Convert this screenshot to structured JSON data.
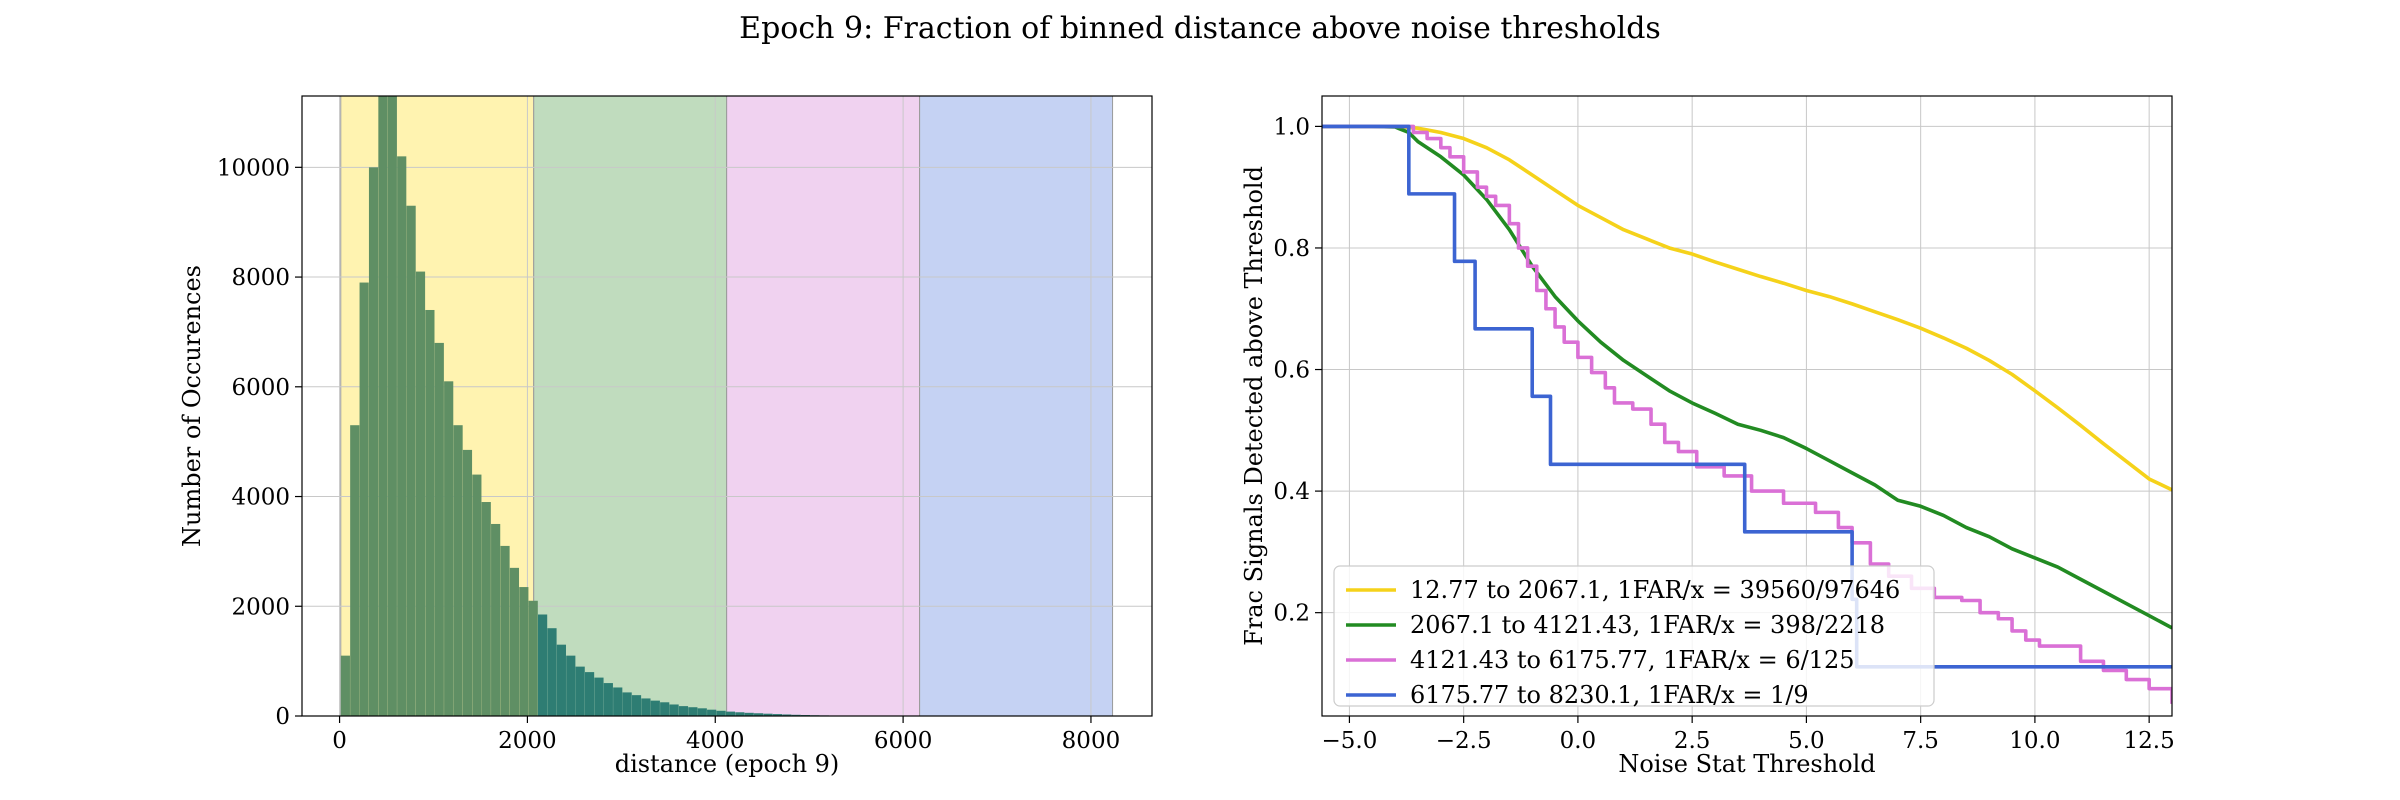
{
  "suptitle": "Epoch 9: Fraction of binned distance above noise thresholds",
  "colors": {
    "hist_bar": "#5f8f64",
    "hist_overflow": "#2e7d73",
    "band_yellow": "#fff3b0",
    "band_green": "#c0dcbe",
    "band_pink": "#f0d2f0",
    "band_blue": "#c5d2f3",
    "series_yellow": "#f5d21a",
    "series_green": "#228b22",
    "series_pink": "#da70d6",
    "series_blue": "#3c64d2",
    "grid": "#c8c8c8"
  },
  "chart_data": [
    {
      "type": "bar",
      "subtype": "histogram",
      "title": "",
      "xlabel": "distance (epoch 9)",
      "ylabel": "Number of Occurences",
      "xlim": [
        -400,
        8650
      ],
      "ylim": [
        0,
        11300
      ],
      "xticks": [
        "0",
        "2000",
        "4000",
        "6000",
        "8000"
      ],
      "yticks": [
        "0",
        "2000",
        "4000",
        "6000",
        "8000",
        "10000"
      ],
      "grid": true,
      "bin_start": 12.77,
      "bin_width": 100,
      "values": [
        1100,
        5300,
        7900,
        10000,
        11300,
        11300,
        10200,
        9300,
        8100,
        7400,
        6800,
        6100,
        5300,
        4850,
        4400,
        3900,
        3500,
        3100,
        2700,
        2350,
        2100,
        1850,
        1600,
        1300,
        1100,
        900,
        800,
        700,
        600,
        520,
        430,
        380,
        320,
        280,
        250,
        210,
        180,
        160,
        140,
        115,
        95,
        80,
        68,
        58,
        50,
        42,
        35,
        28,
        22,
        18,
        14,
        11,
        8,
        6,
        4,
        3,
        2,
        2,
        1,
        1
      ],
      "bands": [
        {
          "from": 12.77,
          "to": 2067.1,
          "color": "#fff3b0"
        },
        {
          "from": 2067.1,
          "to": 4121.43,
          "color": "#c0dcbe"
        },
        {
          "from": 4121.43,
          "to": 6175.77,
          "color": "#f0d2f0"
        },
        {
          "from": 6175.77,
          "to": 8230.1,
          "color": "#c5d2f3"
        }
      ]
    },
    {
      "type": "line",
      "title": "",
      "xlabel": "Noise Stat Threshold",
      "ylabel": "Frac Signals Detected above Threshold",
      "xlim": [
        -5.6,
        13.0
      ],
      "ylim": [
        0.03,
        1.05
      ],
      "xticks": [
        "−5.0",
        "−2.5",
        "0.0",
        "2.5",
        "5.0",
        "7.5",
        "10.0",
        "12.5"
      ],
      "yticks": [
        "0.2",
        "0.4",
        "0.6",
        "0.8",
        "1.0"
      ],
      "grid": true,
      "legend_position": "lower-left",
      "series": [
        {
          "name": "12.77 to 2067.1, 1FAR/x = 39560/97646",
          "color": "#f5d21a",
          "step": false,
          "points": [
            [
              -5.6,
              1.0
            ],
            [
              -4.5,
              1.0
            ],
            [
              -4.0,
              1.0
            ],
            [
              -3.5,
              0.997
            ],
            [
              -3.0,
              0.99
            ],
            [
              -2.5,
              0.98
            ],
            [
              -2.0,
              0.965
            ],
            [
              -1.5,
              0.945
            ],
            [
              -1.0,
              0.92
            ],
            [
              -0.5,
              0.895
            ],
            [
              0.0,
              0.87
            ],
            [
              0.5,
              0.85
            ],
            [
              1.0,
              0.83
            ],
            [
              1.5,
              0.815
            ],
            [
              2.0,
              0.8
            ],
            [
              2.5,
              0.79
            ],
            [
              3.0,
              0.777
            ],
            [
              3.5,
              0.765
            ],
            [
              4.0,
              0.753
            ],
            [
              4.5,
              0.742
            ],
            [
              5.0,
              0.73
            ],
            [
              5.5,
              0.72
            ],
            [
              6.0,
              0.708
            ],
            [
              6.5,
              0.695
            ],
            [
              7.0,
              0.682
            ],
            [
              7.5,
              0.668
            ],
            [
              8.0,
              0.652
            ],
            [
              8.5,
              0.635
            ],
            [
              9.0,
              0.615
            ],
            [
              9.5,
              0.592
            ],
            [
              10.0,
              0.565
            ],
            [
              10.5,
              0.537
            ],
            [
              11.0,
              0.508
            ],
            [
              11.5,
              0.478
            ],
            [
              12.0,
              0.449
            ],
            [
              12.5,
              0.42
            ],
            [
              13.0,
              0.402
            ]
          ]
        },
        {
          "name": "2067.1 to 4121.43, 1FAR/x = 398/2218",
          "color": "#228b22",
          "step": false,
          "points": [
            [
              -5.6,
              1.0
            ],
            [
              -4.5,
              1.0
            ],
            [
              -4.0,
              0.999
            ],
            [
              -3.7,
              0.99
            ],
            [
              -3.5,
              0.975
            ],
            [
              -3.0,
              0.95
            ],
            [
              -2.5,
              0.92
            ],
            [
              -2.0,
              0.88
            ],
            [
              -1.5,
              0.83
            ],
            [
              -1.0,
              0.77
            ],
            [
              -0.5,
              0.72
            ],
            [
              0.0,
              0.68
            ],
            [
              0.5,
              0.645
            ],
            [
              1.0,
              0.615
            ],
            [
              1.5,
              0.59
            ],
            [
              2.0,
              0.565
            ],
            [
              2.5,
              0.545
            ],
            [
              3.0,
              0.528
            ],
            [
              3.5,
              0.51
            ],
            [
              4.0,
              0.5
            ],
            [
              4.5,
              0.488
            ],
            [
              5.0,
              0.47
            ],
            [
              5.5,
              0.45
            ],
            [
              6.0,
              0.43
            ],
            [
              6.5,
              0.41
            ],
            [
              7.0,
              0.385
            ],
            [
              7.5,
              0.375
            ],
            [
              8.0,
              0.36
            ],
            [
              8.5,
              0.34
            ],
            [
              9.0,
              0.325
            ],
            [
              9.5,
              0.305
            ],
            [
              10.0,
              0.29
            ],
            [
              10.5,
              0.275
            ],
            [
              11.0,
              0.255
            ],
            [
              11.5,
              0.235
            ],
            [
              12.0,
              0.215
            ],
            [
              12.5,
              0.195
            ],
            [
              13.0,
              0.175
            ]
          ]
        },
        {
          "name": "4121.43 to 6175.77, 1FAR/x = 6/125",
          "color": "#da70d6",
          "step": true,
          "points": [
            [
              -5.6,
              1.0
            ],
            [
              -4.0,
              1.0
            ],
            [
              -3.6,
              0.99
            ],
            [
              -3.3,
              0.98
            ],
            [
              -3.0,
              0.965
            ],
            [
              -2.8,
              0.95
            ],
            [
              -2.5,
              0.925
            ],
            [
              -2.2,
              0.9
            ],
            [
              -2.0,
              0.885
            ],
            [
              -1.8,
              0.87
            ],
            [
              -1.5,
              0.84
            ],
            [
              -1.3,
              0.8
            ],
            [
              -1.1,
              0.77
            ],
            [
              -0.9,
              0.73
            ],
            [
              -0.7,
              0.7
            ],
            [
              -0.5,
              0.67
            ],
            [
              -0.3,
              0.645
            ],
            [
              0.0,
              0.62
            ],
            [
              0.3,
              0.595
            ],
            [
              0.6,
              0.57
            ],
            [
              0.8,
              0.545
            ],
            [
              1.2,
              0.535
            ],
            [
              1.6,
              0.51
            ],
            [
              1.9,
              0.48
            ],
            [
              2.2,
              0.465
            ],
            [
              2.6,
              0.44
            ],
            [
              3.2,
              0.425
            ],
            [
              3.8,
              0.4
            ],
            [
              4.5,
              0.38
            ],
            [
              5.2,
              0.365
            ],
            [
              5.7,
              0.34
            ],
            [
              6.0,
              0.315
            ],
            [
              6.4,
              0.28
            ],
            [
              6.8,
              0.26
            ],
            [
              7.3,
              0.24
            ],
            [
              7.8,
              0.225
            ],
            [
              8.4,
              0.22
            ],
            [
              8.8,
              0.2
            ],
            [
              9.2,
              0.19
            ],
            [
              9.5,
              0.17
            ],
            [
              9.8,
              0.155
            ],
            [
              10.1,
              0.145
            ],
            [
              10.5,
              0.145
            ],
            [
              11.0,
              0.12
            ],
            [
              11.5,
              0.105
            ],
            [
              12.0,
              0.09
            ],
            [
              12.5,
              0.075
            ],
            [
              13.0,
              0.05
            ]
          ]
        },
        {
          "name": "6175.77 to 8230.1, 1FAR/x = 1/9",
          "color": "#3c64d2",
          "step": true,
          "points": [
            [
              -5.6,
              1.0
            ],
            [
              -3.7,
              1.0
            ],
            [
              -3.7,
              0.889
            ],
            [
              -2.7,
              0.889
            ],
            [
              -2.7,
              0.778
            ],
            [
              -2.25,
              0.778
            ],
            [
              -2.25,
              0.667
            ],
            [
              -1.0,
              0.667
            ],
            [
              -1.0,
              0.556
            ],
            [
              -0.6,
              0.556
            ],
            [
              -0.6,
              0.444
            ],
            [
              3.65,
              0.444
            ],
            [
              3.65,
              0.333
            ],
            [
              6.0,
              0.333
            ],
            [
              6.0,
              0.222
            ],
            [
              6.1,
              0.222
            ],
            [
              6.1,
              0.111
            ],
            [
              13.0,
              0.111
            ]
          ]
        }
      ]
    }
  ]
}
